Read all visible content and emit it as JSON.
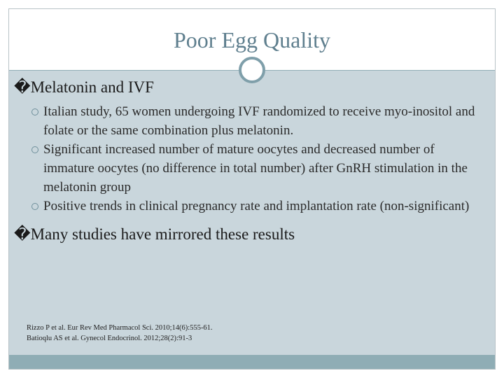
{
  "title": "Poor Egg Quality",
  "bullets": [
    {
      "text": "�Melatonin and IVF",
      "items": [
        "Italian study, 65 women undergoing IVF randomized to receive myo-inositol and folate or the same combination plus melatonin.",
        "Significant increased number of mature oocytes and decreased number of immature oocytes (no difference in total number) after GnRH stimulation in the melatonin group",
        "Positive trends in clinical pregnancy rate and implantation rate (non-significant)"
      ]
    },
    {
      "text": "�Many studies have mirrored these results",
      "items": []
    }
  ],
  "references": [
    "Rizzo P et al. Eur Rev Med Pharmacol Sci. 2010;14(6):555-61.",
    "Batioqlu AS et al. Gynecol Endocrinol. 2012;28(2):91-3"
  ]
}
